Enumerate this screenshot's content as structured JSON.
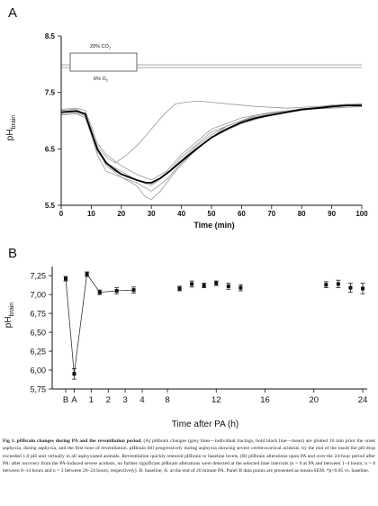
{
  "panel_a_letter": "A",
  "panel_b_letter": "B",
  "chart_a": {
    "box_top_label": "20% CO",
    "box_top_sub": "2",
    "box_bottom_label": "6% O",
    "box_bottom_sub": "2",
    "ylabel": "pH",
    "ylabel_sub": "brain",
    "xlabel": "Time (min)"
  },
  "chart_b": {
    "ylabel": "pH",
    "ylabel_sub": "brain",
    "xlabel": "Time after PA (h)"
  },
  "chart_data": [
    {
      "type": "line",
      "title": "",
      "xlabel": "Time (min)",
      "ylabel": "pHbrain",
      "xlim": [
        0,
        100
      ],
      "ylim": [
        5.5,
        8.5
      ],
      "x_ticks": [
        0,
        10,
        20,
        30,
        40,
        50,
        60,
        70,
        80,
        90,
        100
      ],
      "y_ticks": [
        5.5,
        6.5,
        7.5,
        8.5
      ],
      "y_tick_labels": [
        "5.5",
        "6.5",
        "7.5",
        "8.5"
      ],
      "asphyxia_period": [
        10,
        30
      ],
      "series": [
        {
          "x": [
            0,
            5,
            8,
            10,
            12,
            15,
            18,
            20,
            22,
            25,
            28,
            30,
            32,
            35,
            40,
            45,
            50,
            55,
            60,
            65,
            70,
            75,
            80,
            85,
            90,
            95,
            100
          ],
          "values": [
            7.15,
            7.17,
            7.1,
            6.8,
            6.45,
            6.25,
            6.15,
            6.05,
            6.0,
            5.95,
            5.9,
            5.88,
            5.93,
            6.05,
            6.3,
            6.55,
            6.75,
            6.9,
            7.0,
            7.08,
            7.12,
            7.17,
            7.21,
            7.23,
            7.26,
            7.28,
            7.28
          ]
        },
        {
          "x": [
            0,
            5,
            8,
            10,
            12,
            15,
            20,
            25,
            30,
            35,
            40,
            50,
            60,
            70,
            80,
            90,
            100
          ],
          "values": [
            7.2,
            7.22,
            7.18,
            6.9,
            6.6,
            6.4,
            6.2,
            6.05,
            5.95,
            6.1,
            6.4,
            6.85,
            7.05,
            7.15,
            7.2,
            7.22,
            7.25
          ]
        },
        {
          "x": [
            0,
            5,
            8,
            10,
            12,
            15,
            20,
            25,
            30,
            35,
            40,
            50,
            60,
            70,
            80,
            90,
            100
          ],
          "values": [
            7.1,
            7.12,
            7.05,
            6.75,
            6.4,
            6.1,
            6.0,
            5.9,
            5.75,
            5.95,
            6.25,
            6.7,
            6.95,
            7.1,
            7.18,
            7.25,
            7.3
          ]
        },
        {
          "x": [
            0,
            5,
            8,
            10,
            12,
            15,
            20,
            25,
            30,
            35,
            40,
            50,
            60,
            70,
            80,
            90,
            100
          ],
          "values": [
            7.18,
            7.2,
            7.12,
            6.85,
            6.5,
            6.25,
            6.1,
            5.95,
            5.85,
            6.05,
            6.35,
            6.8,
            7.0,
            7.12,
            7.2,
            7.28,
            7.3
          ]
        },
        {
          "x": [
            0,
            5,
            8,
            10,
            12,
            15,
            18,
            22,
            26,
            30,
            34,
            38,
            45,
            55,
            65,
            75,
            85,
            100
          ],
          "values": [
            7.12,
            7.14,
            7.08,
            6.8,
            6.55,
            6.35,
            6.25,
            6.4,
            6.6,
            6.85,
            7.1,
            7.3,
            7.35,
            7.3,
            7.25,
            7.22,
            7.25,
            7.28
          ]
        },
        {
          "x": [
            0,
            5,
            8,
            10,
            12,
            15,
            20,
            25,
            28,
            30,
            33,
            38,
            45,
            55,
            65,
            80,
            100
          ],
          "values": [
            7.16,
            7.18,
            7.1,
            6.8,
            6.5,
            6.2,
            6.0,
            5.85,
            5.65,
            5.6,
            5.75,
            6.1,
            6.5,
            6.9,
            7.1,
            7.2,
            7.25
          ]
        }
      ],
      "mean_series": {
        "x": [
          0,
          5,
          8,
          10,
          12,
          15,
          18,
          20,
          25,
          28,
          30,
          33,
          36,
          40,
          45,
          50,
          55,
          60,
          65,
          70,
          75,
          80,
          85,
          90,
          95,
          100
        ],
        "values": [
          7.15,
          7.17,
          7.12,
          6.8,
          6.5,
          6.25,
          6.12,
          6.05,
          5.95,
          5.9,
          5.9,
          5.98,
          6.1,
          6.28,
          6.5,
          6.7,
          6.85,
          6.97,
          7.05,
          7.1,
          7.15,
          7.2,
          7.22,
          7.25,
          7.27,
          7.27
        ]
      }
    },
    {
      "type": "line",
      "title": "",
      "xlabel": "Time after PA (h)",
      "ylabel": "pHbrain",
      "ylim": [
        5.75,
        7.3
      ],
      "y_ticks": [
        5.75,
        6.0,
        6.25,
        6.5,
        6.75,
        7.0,
        7.25
      ],
      "y_tick_labels": [
        "5,75",
        "6,00",
        "6,25",
        "6,50",
        "6,75",
        "7,00",
        "7,25"
      ],
      "x_ticks": [
        {
          "label": "B",
          "x": -0.5
        },
        {
          "label": "A",
          "x": 0
        },
        {
          "label": "1",
          "x": 1
        },
        {
          "label": "2",
          "x": 2
        },
        {
          "label": "3",
          "x": 3
        },
        {
          "label": "4",
          "x": 4
        },
        {
          "label": "8",
          "x": 8
        },
        {
          "label": "12",
          "x": 12
        },
        {
          "label": "16",
          "x": 16
        },
        {
          "label": "20",
          "x": 20
        },
        {
          "label": "24",
          "x": 24
        }
      ],
      "points": [
        {
          "x": -0.5,
          "y": 7.21,
          "err": 0.03
        },
        {
          "x": 0,
          "y": 5.95,
          "err": 0.07
        },
        {
          "x": 0.75,
          "y": 7.27,
          "err": 0.03
        },
        {
          "x": 1.5,
          "y": 7.03,
          "err": 0.03
        },
        {
          "x": 2.5,
          "y": 7.05,
          "err": 0.04
        },
        {
          "x": 3.5,
          "y": 7.06,
          "err": 0.04
        },
        {
          "x": 9,
          "y": 7.08,
          "err": 0.03
        },
        {
          "x": 10,
          "y": 7.14,
          "err": 0.04
        },
        {
          "x": 11,
          "y": 7.12,
          "err": 0.03
        },
        {
          "x": 12,
          "y": 7.15,
          "err": 0.03
        },
        {
          "x": 13,
          "y": 7.11,
          "err": 0.04
        },
        {
          "x": 14,
          "y": 7.09,
          "err": 0.04
        },
        {
          "x": 21,
          "y": 7.13,
          "err": 0.04
        },
        {
          "x": 22,
          "y": 7.14,
          "err": 0.05
        },
        {
          "x": 23,
          "y": 7.09,
          "err": 0.06
        },
        {
          "x": 24,
          "y": 7.08,
          "err": 0.07
        }
      ]
    }
  ],
  "caption": {
    "fig_label": "Fig 1.",
    "title": "pHbrain changes during PA and the reventilation period.",
    "body": "(A) pHbrain changes (grey lines—individual tracings, bold black line—mean) are plotted 10 min prior the onset asphyxia, during asphyxia, and the first hour of reventilation. pHbrain fell progressively during asphyxia showing severe cerebrocortical acidosis, by the end of the insult the pH drop exceeded 1.0 pH unit virtually in all asphyxiated animals. Reventilation quickly restored pHbrain to baseline levels. (B) pHbrain alterations upon PA and over the 24-hour period after PA: after recovery from the PA-induced severe acidosis, no further significant pHbrain alterations were detected at the selected time intervals (n = 6 at PA and between 1–4 hours; n = 8 between 8–14 hours and n = 3 between 20–24 hours; respectively). B: baseline, A: at the end of 20 minute PA. Panel B data points are presented as mean±SEM. *p<0.05 vs. baseline."
  }
}
